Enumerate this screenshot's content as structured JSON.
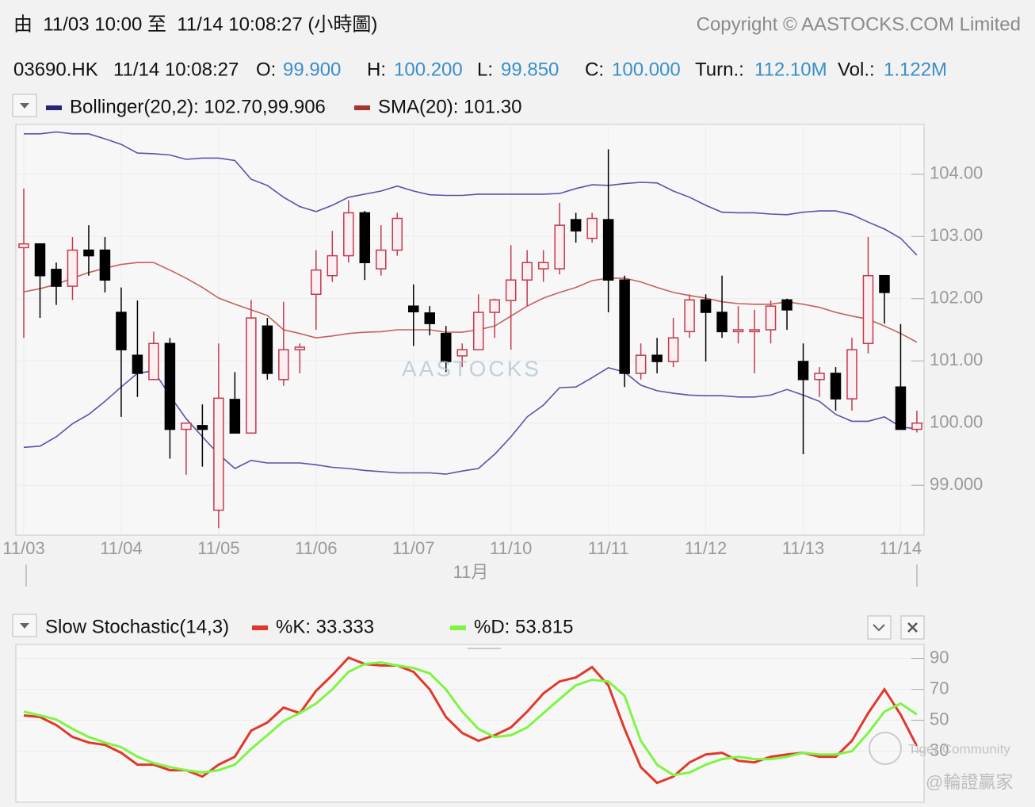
{
  "header": {
    "range": "由  11/03 10:00 至  11/14 10:08:27 (小時圖)",
    "copyright": "Copyright © AASTOCKS.COM Limited",
    "symbol": "03690.HK",
    "time": "11/14 10:08:27",
    "quote": [
      {
        "label": "O:",
        "value": "99.900"
      },
      {
        "label": "H:",
        "value": "100.200"
      },
      {
        "label": "L:",
        "value": "99.850"
      },
      {
        "label": "C:",
        "value": "100.000"
      },
      {
        "label": "Turn.:",
        "value": "112.10M"
      },
      {
        "label": "Vol.:",
        "value": "1.122M"
      }
    ]
  },
  "watermarks": [
    "AASTOCKS",
    "Tiger Community",
    "@輪證贏家"
  ],
  "chart_data": [
    {
      "type": "candlestick",
      "categories": [
        "11/03",
        null,
        null,
        null,
        null,
        null,
        "11/04",
        null,
        null,
        null,
        null,
        null,
        "11/05",
        null,
        null,
        null,
        null,
        null,
        "11/06",
        null,
        null,
        null,
        null,
        null,
        "11/07",
        null,
        null,
        null,
        null,
        null,
        "11/10",
        null,
        null,
        null,
        null,
        null,
        "11/11",
        null,
        null,
        null,
        null,
        null,
        "11/12",
        null,
        null,
        null,
        null,
        null,
        "11/13",
        null,
        null,
        null,
        null,
        null,
        "11/14",
        null
      ],
      "month_label": "11月",
      "open": [
        102.82,
        102.88,
        102.47,
        102.2,
        102.78,
        102.78,
        101.78,
        101.09,
        100.7,
        101.28,
        99.9,
        99.96,
        98.6,
        100.38,
        99.84,
        101.56,
        100.7,
        101.18,
        102.07,
        102.37,
        102.69,
        103.38,
        102.48,
        102.78,
        101.88,
        101.77,
        101.44,
        101.08,
        101.18,
        101.78,
        101.97,
        102.3,
        102.48,
        102.48,
        103.27,
        102.97,
        103.27,
        102.3,
        100.8,
        101.09,
        100.99,
        101.47,
        101.98,
        101.78,
        101.47,
        101.47,
        101.5,
        101.98,
        100.99,
        100.7,
        100.8,
        100.39,
        101.28,
        102.37,
        100.58,
        99.9
      ],
      "high": [
        103.77,
        102.88,
        102.58,
        102.99,
        103.18,
        102.99,
        102.18,
        101.97,
        101.47,
        101.37,
        100.0,
        100.3,
        101.28,
        100.82,
        101.98,
        101.69,
        101.95,
        101.28,
        102.78,
        103.09,
        103.58,
        103.41,
        103.18,
        103.38,
        102.23,
        101.88,
        101.56,
        101.28,
        102.07,
        102.0,
        102.86,
        102.78,
        102.78,
        103.54,
        103.38,
        103.38,
        104.4,
        102.37,
        101.28,
        101.37,
        101.69,
        102.07,
        102.07,
        102.37,
        101.88,
        101.82,
        101.97,
        102.0,
        101.28,
        100.9,
        100.9,
        101.37,
        102.99,
        102.37,
        101.59,
        100.2
      ],
      "low": [
        101.37,
        101.69,
        101.9,
        101.98,
        102.37,
        102.1,
        100.1,
        100.42,
        100.7,
        99.43,
        99.17,
        99.3,
        98.31,
        99.84,
        99.84,
        100.7,
        100.6,
        100.8,
        101.5,
        102.27,
        102.58,
        102.3,
        102.37,
        102.69,
        101.24,
        101.41,
        100.82,
        100.9,
        101.18,
        101.37,
        101.18,
        101.88,
        102.27,
        102.39,
        102.9,
        102.9,
        101.78,
        100.58,
        100.7,
        100.8,
        100.9,
        101.37,
        100.99,
        101.37,
        101.28,
        100.8,
        101.28,
        101.5,
        99.5,
        100.42,
        100.2,
        100.2,
        101.12,
        101.6,
        99.9,
        99.85
      ],
      "close": [
        102.88,
        102.37,
        102.2,
        102.78,
        102.69,
        102.3,
        101.18,
        100.8,
        101.28,
        99.9,
        100.0,
        99.9,
        100.4,
        99.84,
        101.69,
        100.8,
        101.18,
        101.22,
        102.46,
        102.69,
        103.38,
        102.58,
        102.78,
        103.29,
        101.79,
        101.6,
        100.99,
        101.18,
        101.78,
        101.98,
        102.3,
        102.58,
        102.58,
        103.18,
        103.09,
        103.29,
        102.3,
        100.8,
        101.09,
        100.99,
        101.37,
        101.98,
        101.78,
        101.47,
        101.5,
        101.5,
        101.88,
        101.82,
        100.7,
        100.8,
        100.39,
        101.18,
        102.37,
        102.1,
        99.9,
        100.0
      ],
      "up_color": "#c23a4e",
      "down_color": "#000000",
      "overlays": [
        {
          "name": "Bollinger(20,2): 102.70,99.906",
          "color": "#5a52a6",
          "legend_color": "#2a237a",
          "upper": [
            104.65,
            104.65,
            104.68,
            104.65,
            104.65,
            104.57,
            104.48,
            104.34,
            104.33,
            104.31,
            104.24,
            104.26,
            104.26,
            104.22,
            103.92,
            103.82,
            103.63,
            103.48,
            103.4,
            103.5,
            103.63,
            103.68,
            103.73,
            103.81,
            103.73,
            103.67,
            103.66,
            103.66,
            103.68,
            103.68,
            103.68,
            103.68,
            103.68,
            103.69,
            103.77,
            103.83,
            103.82,
            103.85,
            103.87,
            103.86,
            103.73,
            103.63,
            103.5,
            103.39,
            103.38,
            103.38,
            103.36,
            103.35,
            103.39,
            103.41,
            103.41,
            103.35,
            103.23,
            103.12,
            102.97,
            102.7
          ],
          "lower": [
            99.61,
            99.63,
            99.78,
            99.99,
            100.14,
            100.35,
            100.58,
            100.8,
            100.84,
            100.44,
            100.07,
            99.78,
            99.5,
            99.27,
            99.4,
            99.36,
            99.36,
            99.36,
            99.33,
            99.29,
            99.27,
            99.24,
            99.22,
            99.2,
            99.2,
            99.2,
            99.18,
            99.23,
            99.27,
            99.5,
            99.78,
            100.1,
            100.29,
            100.57,
            100.58,
            100.73,
            100.89,
            100.82,
            100.61,
            100.52,
            100.48,
            100.45,
            100.44,
            100.44,
            100.42,
            100.42,
            100.45,
            100.54,
            100.45,
            100.35,
            100.14,
            100.03,
            100.03,
            100.1,
            99.94,
            99.906
          ]
        },
        {
          "name": "SMA(20): 101.30",
          "color": "#c4625c",
          "legend_color": "#a8332e",
          "values": [
            102.11,
            102.16,
            102.23,
            102.33,
            102.42,
            102.49,
            102.55,
            102.58,
            102.58,
            102.46,
            102.33,
            102.18,
            102.01,
            101.91,
            101.82,
            101.73,
            101.5,
            101.44,
            101.37,
            101.4,
            101.44,
            101.46,
            101.47,
            101.5,
            101.5,
            101.5,
            101.46,
            101.46,
            101.5,
            101.56,
            101.72,
            101.88,
            102.01,
            102.1,
            102.18,
            102.29,
            102.33,
            102.33,
            102.27,
            102.18,
            102.1,
            102.05,
            102.01,
            101.95,
            101.92,
            101.91,
            101.91,
            101.95,
            101.91,
            101.86,
            101.78,
            101.72,
            101.67,
            101.56,
            101.44,
            101.3
          ]
        }
      ],
      "ylim": [
        98.2,
        104.8
      ],
      "yticks": [
        {
          "value": 99,
          "label": "99.000"
        },
        {
          "value": 100,
          "label": "100.00"
        },
        {
          "value": 101,
          "label": "101.00"
        },
        {
          "value": 102,
          "label": "102.00"
        },
        {
          "value": 103,
          "label": "103.00"
        },
        {
          "value": 104,
          "label": "104.00"
        }
      ],
      "grid": true
    },
    {
      "type": "line",
      "title": "Slow Stochastic(14,3)",
      "series": [
        {
          "name": "%K: 33.333",
          "color": "#e0392b",
          "values": [
            53.1,
            52.1,
            46.9,
            39.2,
            35.6,
            34.1,
            29.0,
            21.3,
            21.3,
            17.7,
            17.7,
            13.6,
            21.3,
            26.4,
            43.3,
            48.5,
            58.2,
            54.6,
            69.0,
            79.2,
            90.5,
            86.4,
            85.4,
            85.4,
            81.3,
            70.0,
            52.1,
            41.8,
            36.7,
            40.3,
            45.4,
            55.6,
            67.4,
            75.1,
            77.7,
            84.4,
            72.6,
            44.4,
            19.7,
            9.5,
            13.6,
            22.8,
            27.9,
            29.0,
            23.8,
            22.8,
            26.4,
            27.9,
            29.0,
            26.4,
            26.4,
            36.7,
            54.6,
            70.0,
            53.6,
            33.333
          ]
        },
        {
          "name": "%D: 53.815",
          "color": "#7ef542",
          "values": [
            55.6,
            53.1,
            50.5,
            44.4,
            39.2,
            35.6,
            32.6,
            26.4,
            22.3,
            19.7,
            17.7,
            16.2,
            17.7,
            21.3,
            31.5,
            40.3,
            49.5,
            54.6,
            60.8,
            70.0,
            81.3,
            86.4,
            87.4,
            85.4,
            83.8,
            80.3,
            70.0,
            55.6,
            44.4,
            39.2,
            40.3,
            45.4,
            54.6,
            63.8,
            72.6,
            76.2,
            75.1,
            65.9,
            36.7,
            21.3,
            14.6,
            16.2,
            21.3,
            24.9,
            26.4,
            24.9,
            24.9,
            26.4,
            29.0,
            27.9,
            27.9,
            30.0,
            41.8,
            55.6,
            60.8,
            53.815
          ]
        }
      ],
      "ylim": [
        -3,
        99
      ],
      "yticks": [
        30,
        50,
        70,
        90
      ],
      "grid": true
    }
  ]
}
